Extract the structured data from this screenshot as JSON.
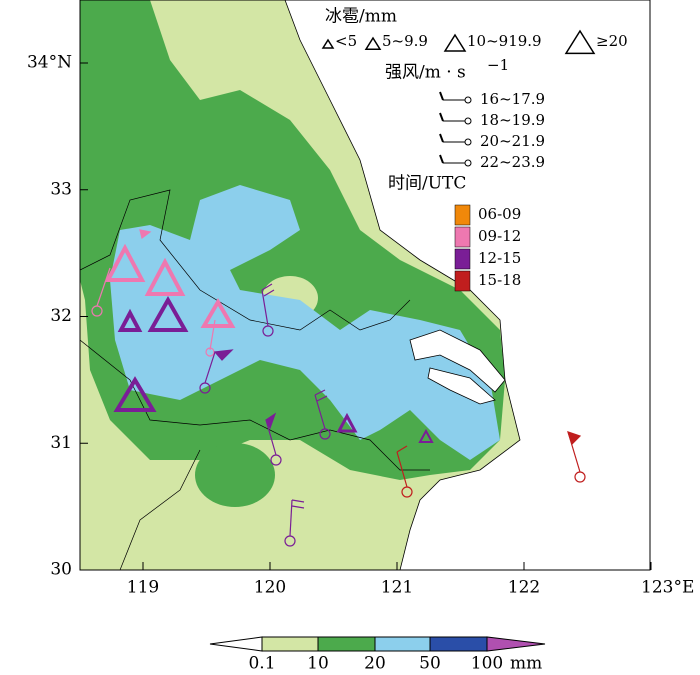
{
  "axes": {
    "x_labels": [
      "119",
      "120",
      "121",
      "122",
      "123°E"
    ],
    "y_labels": [
      "34°N",
      "33",
      "32",
      "31",
      "30"
    ]
  },
  "legend": {
    "hail": {
      "title": "冰雹/mm",
      "items": [
        "<5",
        "5~9.9",
        "10~919.9",
        "≥20"
      ]
    },
    "wind": {
      "title": "强风/m · s",
      "title_sup": "−1",
      "items": [
        "16~17.9",
        "18~19.9",
        "20~21.9",
        "22~23.9"
      ]
    },
    "time": {
      "title": "时间/UTC",
      "items": [
        {
          "label": "06-09",
          "color": "#f0880a"
        },
        {
          "label": "09-12",
          "color": "#ee78b0"
        },
        {
          "label": "12-15",
          "color": "#7a1e96"
        },
        {
          "label": "15-18",
          "color": "#c01e1e"
        }
      ]
    }
  },
  "colorbar": {
    "labels": [
      "0.1",
      "10",
      "20",
      "50",
      "100"
    ],
    "unit": "mm",
    "colors": [
      "#ffffff",
      "#d3e6a5",
      "#4caa4c",
      "#8ccfec",
      "#2a4ea8",
      "#b050b0"
    ]
  }
}
